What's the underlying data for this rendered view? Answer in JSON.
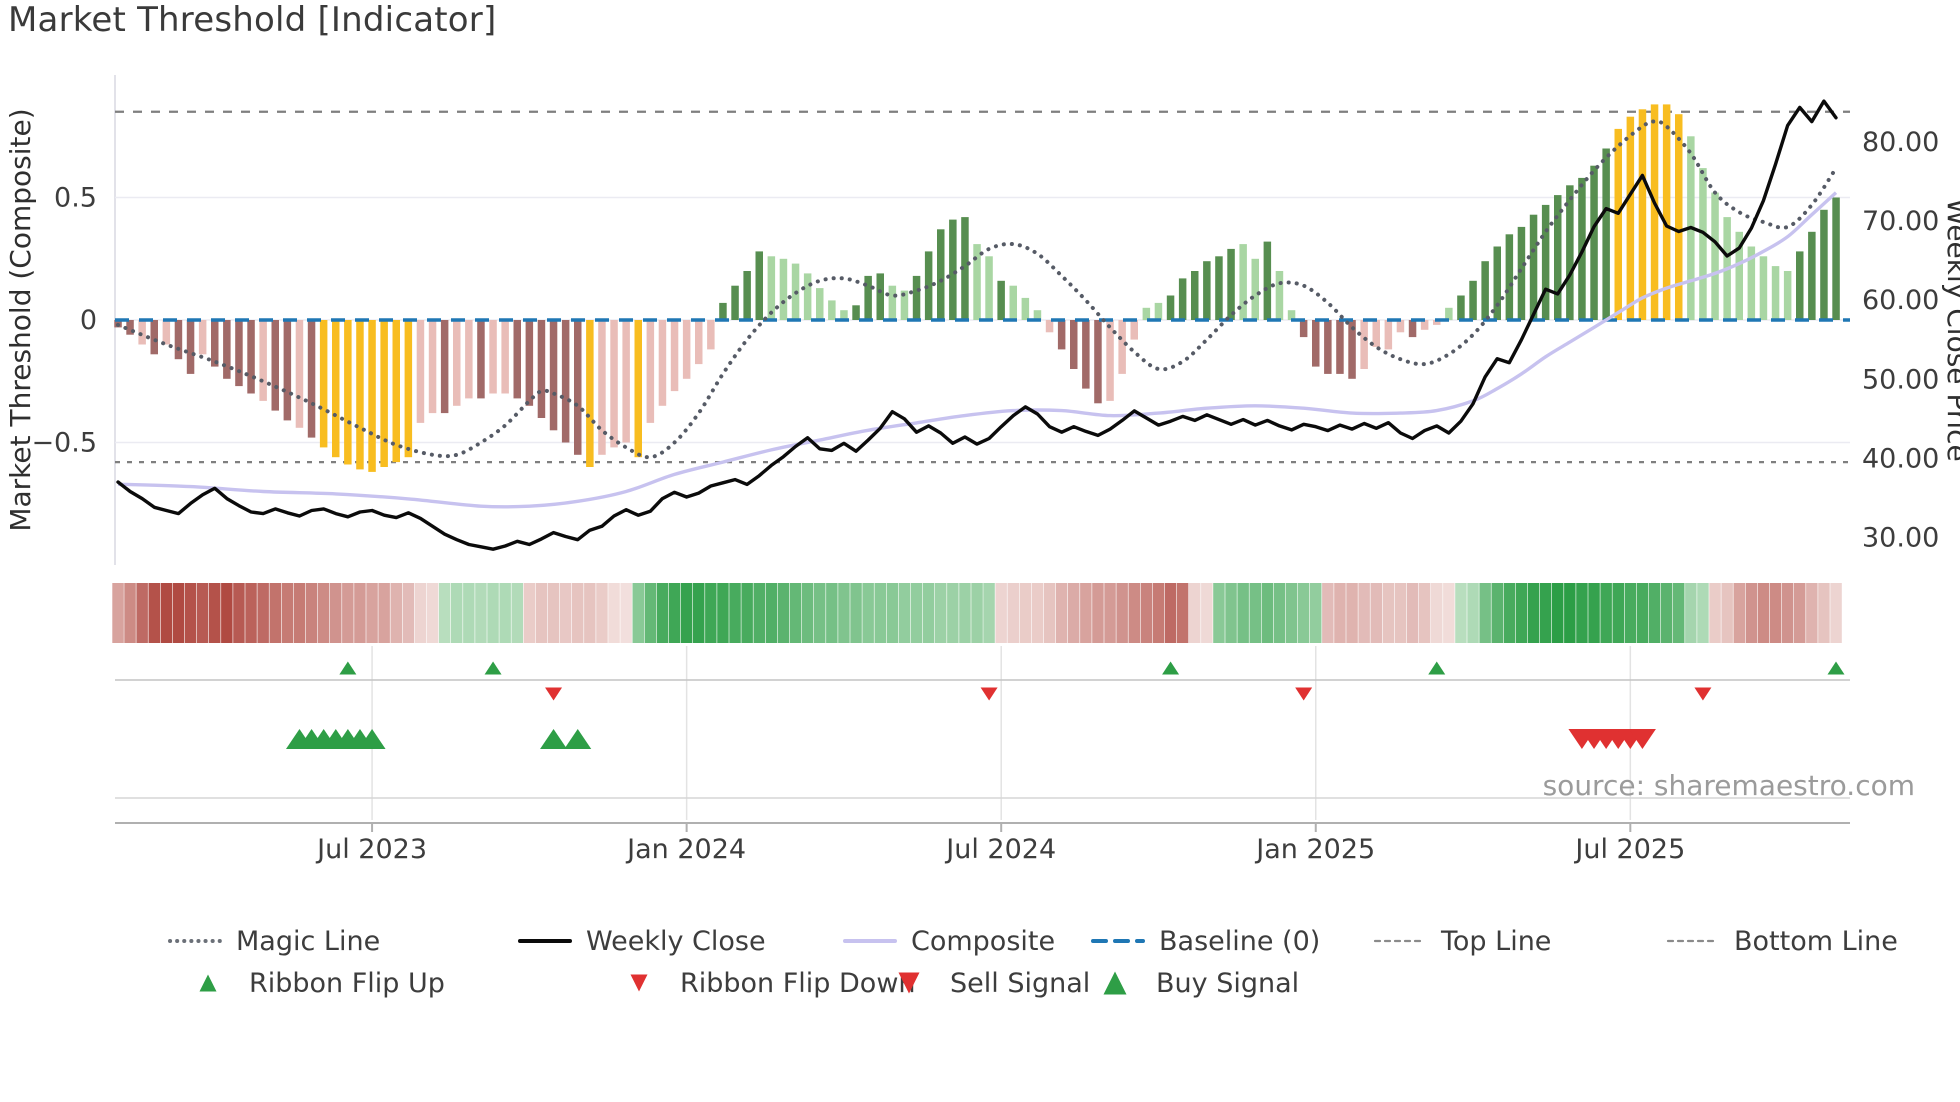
{
  "title": "Market Threshold [Indicator]",
  "source_text": "source: sharemaestro.com",
  "left_axis": {
    "label": "Market Threshold (Composite)",
    "ticks": [
      {
        "label": "0.5",
        "value": 0.5
      },
      {
        "label": "0",
        "value": 0
      },
      {
        "label": "−0.5",
        "value": -0.5
      }
    ]
  },
  "right_axis": {
    "label": "Weekly Close Price",
    "ticks": [
      {
        "label": "80.00",
        "value": 80
      },
      {
        "label": "70.00",
        "value": 70
      },
      {
        "label": "60.00",
        "value": 60
      },
      {
        "label": "50.00",
        "value": 50
      },
      {
        "label": "40.00",
        "value": 40
      },
      {
        "label": "30.00",
        "value": 30
      }
    ]
  },
  "colors": {
    "bar_dark_red": "#a16a68",
    "bar_light_pink": "#e9bdb8",
    "bar_yellow": "#f8bd20",
    "bar_dark_green": "#578e50",
    "bar_light_green": "#a9d6a3",
    "baseline": "#1f77b4",
    "magic_line": "#565b66",
    "weekly_close": "#0b0b0b",
    "composite": "#c7c2ef",
    "top_bottom_line": "#7f7f7f",
    "flip_up": "#2e9e46",
    "flip_down": "#e03131",
    "buy": "#2e9e46",
    "sell": "#e03131",
    "ribbon_green": "#2c9e46",
    "ribbon_red": "#b04a42",
    "grid": "#ebebf2",
    "panel_grid": "#e3e3e3"
  },
  "legend": {
    "row1": [
      {
        "label": "Magic Line",
        "swatch": "dotted",
        "color": "#6b7078"
      },
      {
        "label": "Weekly Close",
        "swatch": "solid",
        "color": "#0b0b0b"
      },
      {
        "label": "Composite",
        "swatch": "solid",
        "color": "#c7c2ef"
      },
      {
        "label": "Baseline (0)",
        "swatch": "dashed",
        "color": "#1f77b4"
      },
      {
        "label": "Top Line",
        "swatch": "fine-dashed",
        "color": "#8a8a8a"
      },
      {
        "label": "Bottom Line",
        "swatch": "fine-dashed",
        "color": "#8a8a8a"
      }
    ],
    "row2": [
      {
        "label": "Ribbon Flip Up",
        "swatch": "tri-up",
        "color": "#2e9e46",
        "size": 17
      },
      {
        "label": "Ribbon Flip Down",
        "swatch": "tri-down",
        "color": "#e03131",
        "size": 17
      },
      {
        "label": "Sell Signal",
        "swatch": "tri-down",
        "color": "#e03131",
        "size": 21
      },
      {
        "label": "Buy Signal",
        "swatch": "tri-up",
        "color": "#2e9e46",
        "size": 23
      }
    ]
  },
  "chart_data": {
    "type": "bar+line",
    "x_unit": "weeks",
    "num_weeks": 143,
    "x_ticks": {
      "weeks": [
        21,
        47,
        73,
        99,
        125
      ],
      "labels": [
        "Jul 2023",
        "Jan 2024",
        "Jul 2024",
        "Jan 2025",
        "Jul 2025"
      ]
    },
    "left_axis_range": [
      -1.0,
      1.0
    ],
    "right_axis_range": [
      26.5,
      88.5
    ],
    "baseline": 0,
    "top_line": 0.85,
    "bottom_line": -0.58,
    "threshold_bars": {
      "values": [
        -0.03,
        -0.06,
        -0.1,
        -0.14,
        -0.1,
        -0.16,
        -0.22,
        -0.14,
        -0.19,
        -0.24,
        -0.27,
        -0.3,
        -0.33,
        -0.37,
        -0.41,
        -0.44,
        -0.48,
        -0.52,
        -0.56,
        -0.59,
        -0.61,
        -0.62,
        -0.6,
        -0.58,
        -0.56,
        -0.42,
        -0.38,
        -0.38,
        -0.35,
        -0.32,
        -0.32,
        -0.3,
        -0.3,
        -0.32,
        -0.35,
        -0.4,
        -0.45,
        -0.5,
        -0.55,
        -0.6,
        -0.55,
        -0.52,
        -0.5,
        -0.56,
        -0.42,
        -0.35,
        -0.29,
        -0.24,
        -0.18,
        -0.12,
        0.07,
        0.14,
        0.2,
        0.28,
        0.26,
        0.25,
        0.23,
        0.19,
        0.13,
        0.08,
        0.04,
        0.06,
        0.18,
        0.19,
        0.14,
        0.12,
        0.18,
        0.28,
        0.37,
        0.41,
        0.42,
        0.31,
        0.26,
        0.16,
        0.14,
        0.09,
        0.04,
        -0.05,
        -0.12,
        -0.2,
        -0.28,
        -0.34,
        -0.33,
        -0.22,
        -0.08,
        0.05,
        0.07,
        0.1,
        0.17,
        0.2,
        0.24,
        0.26,
        0.29,
        0.31,
        0.25,
        0.32,
        0.2,
        0.04,
        -0.07,
        -0.19,
        -0.22,
        -0.22,
        -0.24,
        -0.2,
        -0.11,
        -0.12,
        -0.05,
        -0.07,
        -0.04,
        -0.02,
        0.05,
        0.1,
        0.16,
        0.24,
        0.3,
        0.35,
        0.38,
        0.43,
        0.47,
        0.51,
        0.55,
        0.58,
        0.63,
        0.7,
        0.78,
        0.83,
        0.86,
        0.88,
        0.88,
        0.84,
        0.75,
        0.62,
        0.52,
        0.42,
        0.36,
        0.3,
        0.26,
        0.22,
        0.2,
        0.28,
        0.36,
        0.45,
        0.5
      ],
      "colors": "rrprprrprrrrprrpryyyyyyyypprpprpprrrrrrypppypppppp­ggggllllll"
    },
    "threshold_bar_colors": "rrprprrprrrrprrpryyyyyyyypprpprpprrrrrrypppyppppppgggglllllllgggllgggggllglllprrrrpppllggggggllgllrrrrrpppprpplgggggggggggggg yyyyyylllllllllgggg",
    "bar_color_string": "rrprprrprrrrprrpryyyyyyyypprpprpprrrrrrypppyppppppgggglllllllgggllgggggllglllprrrrpppllgggggglIlgllrr",
    "bar_colors_143": [
      "r",
      "r",
      "p",
      "r",
      "p",
      "r",
      "r",
      "p",
      "r",
      "r",
      "r",
      "r",
      "p",
      "r",
      "r",
      "p",
      "r",
      "y",
      "y",
      "y",
      "y",
      "y",
      "y",
      "y",
      "y",
      "p",
      "p",
      "r",
      "p",
      "p",
      "r",
      "p",
      "p",
      "r",
      "r",
      "r",
      "r",
      "r",
      "r",
      "y",
      "p",
      "p",
      "p",
      "y",
      "p",
      "p",
      "p",
      "p",
      "p",
      "p",
      "g",
      "g",
      "g",
      "g",
      "l",
      "l",
      "l",
      "l",
      "l",
      "l",
      "l",
      "g",
      "g",
      "g",
      "l",
      "l",
      "g",
      "g",
      "g",
      "g",
      "g",
      "l",
      "l",
      "g",
      "l",
      "l",
      "l",
      "p",
      "r",
      "r",
      "r",
      "r",
      "p",
      "p",
      "p",
      "l",
      "l",
      "g",
      "g",
      "g",
      "g",
      "g",
      "g",
      "l",
      "l",
      "g",
      "l",
      "l",
      "r",
      "r",
      "r",
      "r",
      "r",
      "p",
      "p",
      "p",
      "p",
      "r",
      "p",
      "p",
      "l",
      "g",
      "g",
      "g",
      "g",
      "g",
      "g",
      "g",
      "g",
      "g",
      "g",
      "g",
      "g",
      "g",
      "y",
      "y",
      "y",
      "y",
      "y",
      "y",
      "l",
      "l",
      "l",
      "l",
      "l",
      "l",
      "l",
      "l",
      "l",
      "g",
      "g",
      "g",
      "g"
    ],
    "weekly_close": [
      37.0,
      35.8,
      34.9,
      33.8,
      33.4,
      33.0,
      34.3,
      35.4,
      36.2,
      34.9,
      34.0,
      33.2,
      33.0,
      33.6,
      33.1,
      32.7,
      33.4,
      33.6,
      33.0,
      32.6,
      33.2,
      33.4,
      32.8,
      32.5,
      33.1,
      32.4,
      31.4,
      30.4,
      29.7,
      29.1,
      28.8,
      28.5,
      28.9,
      29.5,
      29.1,
      29.8,
      30.6,
      30.1,
      29.7,
      30.9,
      31.4,
      32.7,
      33.5,
      32.8,
      33.3,
      34.9,
      35.7,
      35.1,
      35.6,
      36.5,
      36.9,
      37.3,
      36.7,
      37.8,
      39.1,
      40.2,
      41.5,
      42.6,
      41.2,
      41.0,
      41.9,
      40.9,
      42.3,
      43.8,
      45.9,
      45.0,
      43.3,
      44.1,
      43.2,
      41.9,
      42.7,
      41.8,
      42.5,
      44.0,
      45.4,
      46.5,
      45.6,
      44.0,
      43.3,
      44.0,
      43.4,
      42.9,
      43.7,
      44.8,
      46.0,
      45.1,
      44.2,
      44.7,
      45.3,
      44.8,
      45.5,
      44.9,
      44.3,
      44.9,
      44.2,
      44.8,
      44.1,
      43.6,
      44.3,
      44.0,
      43.5,
      44.2,
      43.7,
      44.4,
      43.8,
      44.5,
      43.2,
      42.5,
      43.5,
      44.1,
      43.2,
      44.7,
      46.9,
      50.3,
      52.6,
      52.1,
      55.0,
      58.2,
      61.4,
      60.8,
      63.2,
      66.1,
      69.3,
      71.6,
      71.0,
      73.4,
      75.8,
      72.3,
      69.4,
      68.7,
      69.2,
      68.6,
      67.4,
      65.6,
      66.6,
      69.1,
      72.6,
      77.2,
      82.1,
      84.4,
      82.6,
      85.2,
      83.1
    ],
    "composite_points": [
      [
        0,
        -0.67
      ],
      [
        6,
        -0.68
      ],
      [
        12,
        -0.7
      ],
      [
        18,
        -0.71
      ],
      [
        24,
        -0.73
      ],
      [
        30,
        -0.76
      ],
      [
        34,
        -0.76
      ],
      [
        38,
        -0.74
      ],
      [
        42,
        -0.7
      ],
      [
        46,
        -0.63
      ],
      [
        50,
        -0.58
      ],
      [
        54,
        -0.53
      ],
      [
        58,
        -0.49
      ],
      [
        62,
        -0.45
      ],
      [
        66,
        -0.42
      ],
      [
        70,
        -0.39
      ],
      [
        74,
        -0.37
      ],
      [
        78,
        -0.37
      ],
      [
        82,
        -0.39
      ],
      [
        86,
        -0.38
      ],
      [
        90,
        -0.36
      ],
      [
        94,
        -0.35
      ],
      [
        98,
        -0.36
      ],
      [
        102,
        -0.38
      ],
      [
        106,
        -0.38
      ],
      [
        109,
        -0.37
      ],
      [
        112,
        -0.33
      ],
      [
        114,
        -0.28
      ],
      [
        116,
        -0.22
      ],
      [
        118,
        -0.15
      ],
      [
        120,
        -0.09
      ],
      [
        122,
        -0.03
      ],
      [
        124,
        0.03
      ],
      [
        126,
        0.09
      ],
      [
        128,
        0.13
      ],
      [
        130,
        0.16
      ],
      [
        132,
        0.19
      ],
      [
        134,
        0.23
      ],
      [
        136,
        0.28
      ],
      [
        138,
        0.34
      ],
      [
        140,
        0.43
      ],
      [
        142,
        0.52
      ]
    ],
    "magic_points": [
      [
        0,
        -0.02
      ],
      [
        4,
        -0.1
      ],
      [
        8,
        -0.17
      ],
      [
        12,
        -0.25
      ],
      [
        16,
        -0.34
      ],
      [
        20,
        -0.44
      ],
      [
        23,
        -0.51
      ],
      [
        26,
        -0.55
      ],
      [
        28,
        -0.55
      ],
      [
        30,
        -0.5
      ],
      [
        32,
        -0.43
      ],
      [
        34,
        -0.33
      ],
      [
        35,
        -0.29
      ],
      [
        36,
        -0.3
      ],
      [
        38,
        -0.35
      ],
      [
        40,
        -0.45
      ],
      [
        42,
        -0.52
      ],
      [
        44,
        -0.56
      ],
      [
        46,
        -0.5
      ],
      [
        48,
        -0.38
      ],
      [
        50,
        -0.22
      ],
      [
        52,
        -0.08
      ],
      [
        54,
        0.03
      ],
      [
        56,
        0.11
      ],
      [
        58,
        0.16
      ],
      [
        60,
        0.17
      ],
      [
        62,
        0.14
      ],
      [
        64,
        0.1
      ],
      [
        66,
        0.12
      ],
      [
        68,
        0.16
      ],
      [
        70,
        0.22
      ],
      [
        72,
        0.29
      ],
      [
        74,
        0.31
      ],
      [
        76,
        0.27
      ],
      [
        78,
        0.18
      ],
      [
        80,
        0.08
      ],
      [
        82,
        -0.03
      ],
      [
        84,
        -0.13
      ],
      [
        86,
        -0.2
      ],
      [
        88,
        -0.17
      ],
      [
        90,
        -0.08
      ],
      [
        92,
        0.02
      ],
      [
        94,
        0.1
      ],
      [
        96,
        0.15
      ],
      [
        98,
        0.14
      ],
      [
        100,
        0.07
      ],
      [
        102,
        -0.03
      ],
      [
        104,
        -0.11
      ],
      [
        106,
        -0.16
      ],
      [
        108,
        -0.18
      ],
      [
        110,
        -0.14
      ],
      [
        112,
        -0.06
      ],
      [
        114,
        0.06
      ],
      [
        116,
        0.21
      ],
      [
        118,
        0.36
      ],
      [
        120,
        0.49
      ],
      [
        122,
        0.61
      ],
      [
        124,
        0.71
      ],
      [
        126,
        0.79
      ],
      [
        127,
        0.81
      ],
      [
        128,
        0.79
      ],
      [
        130,
        0.68
      ],
      [
        132,
        0.52
      ],
      [
        134,
        0.44
      ],
      [
        136,
        0.4
      ],
      [
        138,
        0.38
      ],
      [
        140,
        0.47
      ],
      [
        142,
        0.62
      ]
    ],
    "ribbon": [
      -0.45,
      -0.6,
      -0.8,
      -0.95,
      -1.0,
      -1.0,
      -0.95,
      -0.9,
      -0.95,
      -1.0,
      -0.9,
      -0.85,
      -0.8,
      -0.75,
      -0.7,
      -0.7,
      -0.65,
      -0.6,
      -0.55,
      -0.5,
      -0.5,
      -0.45,
      -0.45,
      -0.35,
      -0.3,
      -0.15,
      -0.12,
      0.25,
      0.3,
      0.3,
      0.28,
      0.3,
      0.3,
      0.28,
      -0.2,
      -0.25,
      -0.25,
      -0.22,
      -0.25,
      -0.25,
      -0.2,
      -0.1,
      -0.08,
      0.5,
      0.7,
      0.85,
      0.9,
      0.95,
      0.95,
      0.9,
      0.9,
      0.85,
      0.85,
      0.8,
      0.8,
      0.75,
      0.7,
      0.65,
      0.6,
      0.6,
      0.55,
      0.55,
      0.5,
      0.5,
      0.5,
      0.45,
      0.45,
      0.45,
      0.4,
      0.4,
      0.4,
      0.4,
      0.35,
      -0.15,
      -0.18,
      -0.2,
      -0.2,
      -0.25,
      -0.35,
      -0.4,
      -0.45,
      -0.5,
      -0.5,
      -0.55,
      -0.6,
      -0.65,
      -0.7,
      -0.8,
      -0.75,
      -0.15,
      -0.12,
      0.5,
      0.55,
      0.6,
      0.6,
      0.65,
      0.6,
      0.55,
      0.5,
      0.45,
      -0.3,
      -0.35,
      -0.35,
      -0.3,
      -0.3,
      -0.25,
      -0.25,
      -0.3,
      -0.25,
      -0.12,
      -0.1,
      0.25,
      0.3,
      0.6,
      0.75,
      0.85,
      0.9,
      0.95,
      0.95,
      1.0,
      1.0,
      0.95,
      0.95,
      0.9,
      0.9,
      0.85,
      0.85,
      0.8,
      0.75,
      0.7,
      0.35,
      0.3,
      -0.2,
      -0.25,
      -0.45,
      -0.55,
      -0.6,
      -0.6,
      -0.55,
      -0.5,
      -0.35,
      -0.25,
      -0.15
    ],
    "signals": {
      "ribbon_flip_up_weeks": [
        19,
        31,
        87,
        109,
        142
      ],
      "ribbon_flip_down_weeks": [
        36,
        72,
        98,
        131
      ],
      "buy_weeks": [
        15,
        16,
        17,
        18,
        19,
        20,
        21,
        36,
        38
      ],
      "sell_weeks": [
        121,
        122,
        123,
        124,
        125,
        126
      ]
    }
  }
}
